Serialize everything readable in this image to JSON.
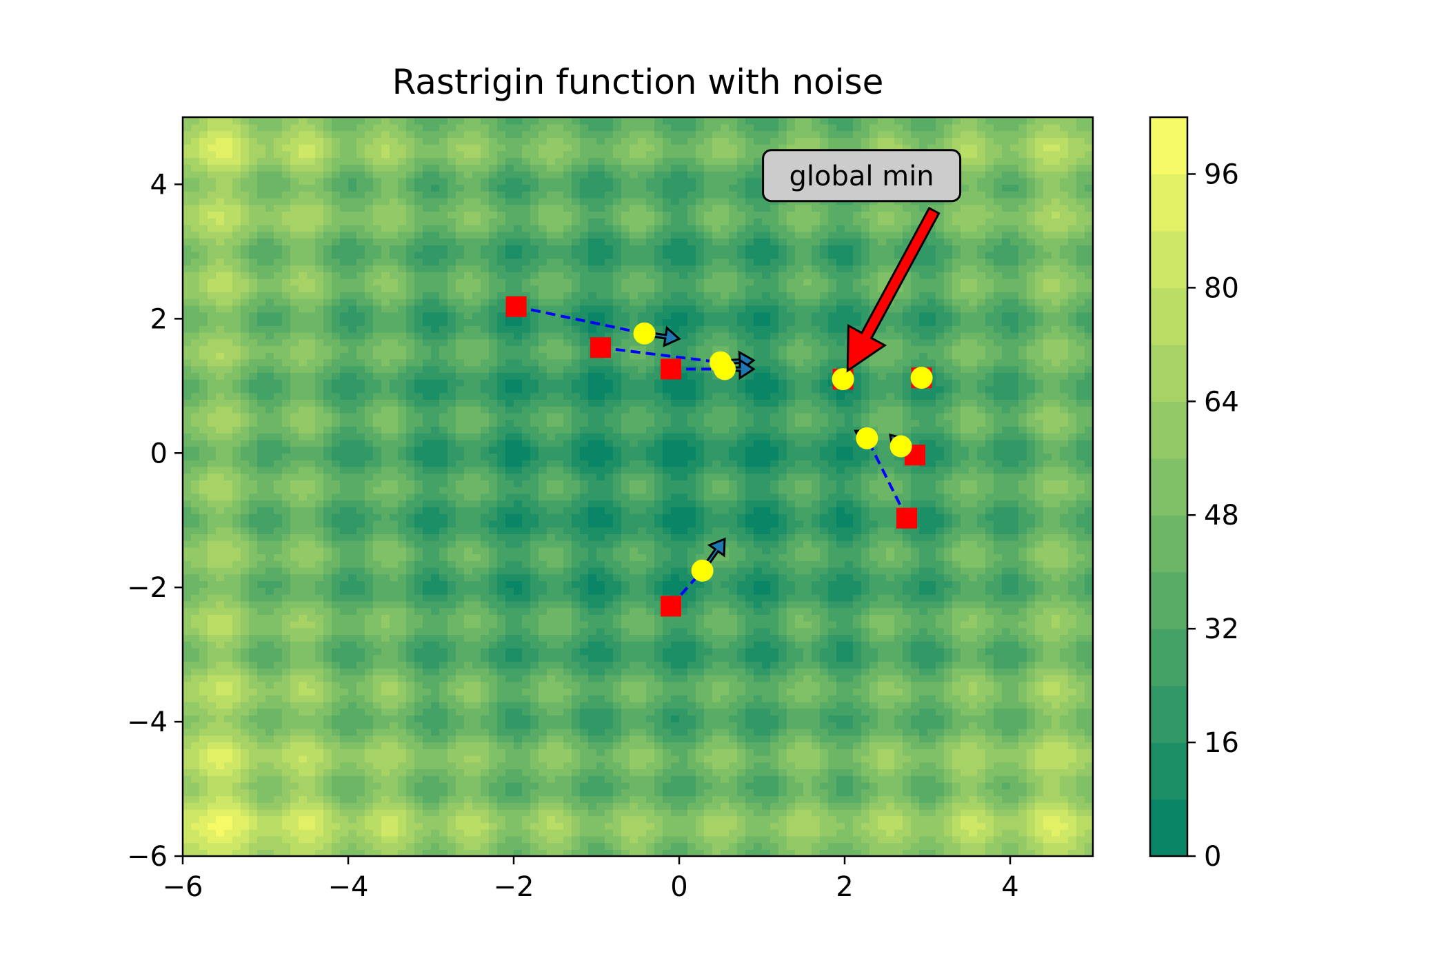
{
  "chart_data": {
    "type": "contour",
    "title": "Rastrigin function with noise",
    "xlabel": "",
    "ylabel": "",
    "xlim": [
      -6,
      5
    ],
    "ylim": [
      -6,
      5
    ],
    "xticks": [
      -6,
      -4,
      -2,
      0,
      2,
      4
    ],
    "yticks": [
      -6,
      -4,
      -2,
      0,
      2,
      4
    ],
    "colormap": "summer",
    "colorbar": {
      "ticks": [
        0,
        16,
        32,
        48,
        64,
        80,
        96
      ],
      "range": [
        0,
        104
      ],
      "levels": 13,
      "color_low": "#008066",
      "color_high": "#ffff66"
    },
    "start_points": [
      {
        "x": -1.97,
        "y": 2.18
      },
      {
        "x": -0.95,
        "y": 1.57
      },
      {
        "x": -0.1,
        "y": 1.25
      },
      {
        "x": 1.98,
        "y": 1.1
      },
      {
        "x": 2.93,
        "y": 1.12
      },
      {
        "x": 2.85,
        "y": -0.03
      },
      {
        "x": 2.75,
        "y": -0.97
      },
      {
        "x": -0.1,
        "y": -2.28
      }
    ],
    "end_points": [
      {
        "x": -0.42,
        "y": 1.78
      },
      {
        "x": 0.5,
        "y": 1.35
      },
      {
        "x": 0.55,
        "y": 1.25
      },
      {
        "x": 1.98,
        "y": 1.1
      },
      {
        "x": 2.93,
        "y": 1.12
      },
      {
        "x": 2.27,
        "y": 0.22
      },
      {
        "x": 2.68,
        "y": 0.1
      },
      {
        "x": 0.28,
        "y": -1.75
      }
    ],
    "paths": [
      {
        "from": [
          -1.97,
          2.18
        ],
        "to": [
          -0.42,
          1.78
        ],
        "arrow_to": [
          0.0,
          1.7
        ]
      },
      {
        "from": [
          -0.95,
          1.57
        ],
        "to": [
          0.5,
          1.35
        ],
        "arrow_to": [
          0.9,
          1.38
        ]
      },
      {
        "from": [
          -0.1,
          1.25
        ],
        "to": [
          0.55,
          1.25
        ],
        "arrow_to": [
          0.9,
          1.25
        ]
      },
      {
        "from": [
          2.75,
          -0.97
        ],
        "to": [
          2.27,
          0.22
        ],
        "arrow_to": [
          2.13,
          0.33
        ]
      },
      {
        "from": [
          2.85,
          -0.03
        ],
        "to": [
          2.68,
          0.1
        ],
        "arrow_to": [
          2.55,
          0.27
        ]
      },
      {
        "from": [
          -0.1,
          -2.28
        ],
        "to": [
          0.28,
          -1.75
        ],
        "arrow_to": [
          0.55,
          -1.28
        ]
      }
    ],
    "annotation": {
      "text": "global min",
      "text_x": 1.08,
      "text_y": 4.12,
      "target_x": 1.98,
      "target_y": 1.1,
      "arrow_color": "#ff0000"
    },
    "marker_colors": {
      "start": "#ff0000",
      "end": "#ffff00",
      "path": "#0000ff"
    }
  }
}
